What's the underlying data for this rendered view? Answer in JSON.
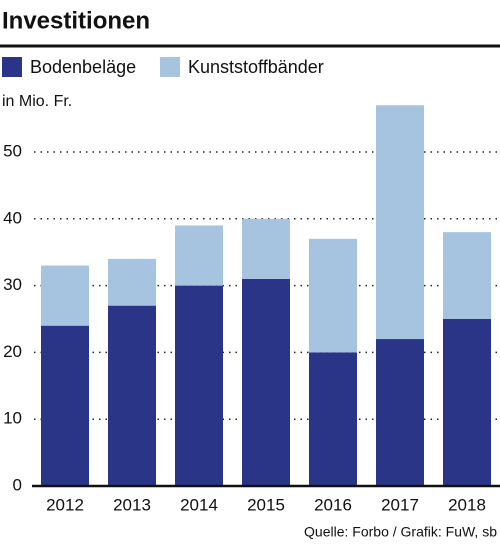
{
  "chart_data": {
    "type": "stacked_bar",
    "title": "Investitionen",
    "y_axis_label": "in Mio. Fr.",
    "source": "Quelle: Forbo / Grafik: FuW, sb",
    "categories": [
      "2012",
      "2013",
      "2014",
      "2015",
      "2016",
      "2017",
      "2018"
    ],
    "series": [
      {
        "name": "Bodenbeläge",
        "color": "#2b3587",
        "values": [
          24,
          27,
          30,
          31,
          20,
          22,
          25
        ]
      },
      {
        "name": "Kunststoffbänder",
        "color": "#a6c3df",
        "values": [
          9,
          7,
          9,
          9,
          17,
          35,
          13
        ]
      }
    ],
    "ylim": [
      0,
      60
    ],
    "yticks": [
      0,
      10,
      20,
      30,
      40,
      50
    ],
    "grid": true
  }
}
